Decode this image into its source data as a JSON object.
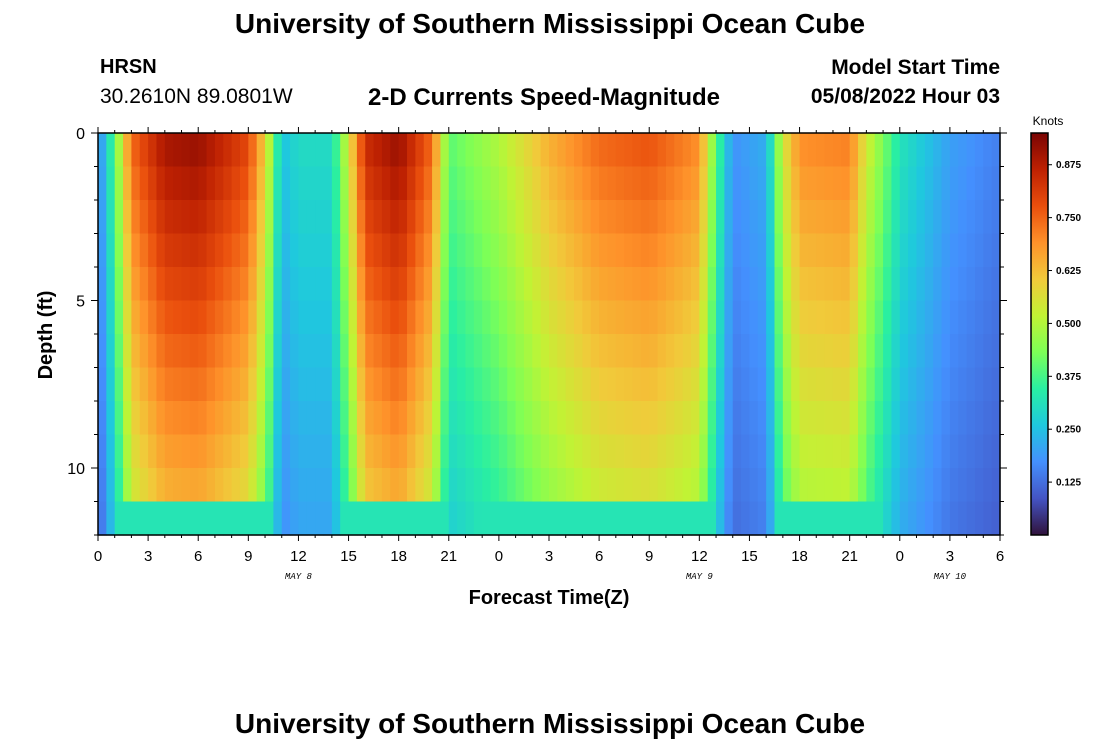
{
  "header": {
    "title": "University of Southern Mississippi Ocean Cube",
    "station": "HRSN",
    "coordinates": "30.2610N  89.0801W",
    "subtitle": "2-D Currents Speed-Magnitude",
    "model_start_label": "Model Start Time",
    "model_start_value": "05/08/2022 Hour 03"
  },
  "footer": {
    "title": "University of Southern Mississippi Ocean Cube"
  },
  "chart_data": {
    "type": "heatmap",
    "title": "2-D Currents Speed-Magnitude",
    "xlabel": "Forecast Time(Z)",
    "ylabel": "Depth (ft)",
    "x_range_hours": [
      0,
      54
    ],
    "y_range_ft": [
      0,
      12
    ],
    "x_tick_labels": [
      "0",
      "3",
      "6",
      "9",
      "12",
      "15",
      "18",
      "21",
      "0",
      "3",
      "6",
      "9",
      "12",
      "15",
      "18",
      "21",
      "0",
      "3",
      "6"
    ],
    "y_tick_labels": [
      "0",
      "5",
      "10"
    ],
    "date_labels": [
      {
        "text": "MAY 8",
        "hour": 12
      },
      {
        "text": "MAY 9",
        "hour": 36
      },
      {
        "text": "MAY 10",
        "hour": 51
      }
    ],
    "colorbar": {
      "label": "Knots",
      "range": [
        0,
        0.95
      ],
      "tick_labels": [
        "0.125",
        "0.250",
        "0.375",
        "0.500",
        "0.625",
        "0.750",
        "0.875"
      ],
      "colors": [
        "#30123b",
        "#4454c4",
        "#4490fe",
        "#1fc8de",
        "#29efa2",
        "#7dff56",
        "#c1f334",
        "#f1ca3a",
        "#fe922a",
        "#ea4f0d",
        "#be2102",
        "#7a0403"
      ]
    },
    "surface_speed_knots_by_hour": [
      {
        "hour": 0,
        "speed": 0.15
      },
      {
        "hour": 1,
        "speed": 0.4
      },
      {
        "hour": 2,
        "speed": 0.75
      },
      {
        "hour": 4,
        "speed": 0.9
      },
      {
        "hour": 6,
        "speed": 0.92
      },
      {
        "hour": 9,
        "speed": 0.8
      },
      {
        "hour": 10,
        "speed": 0.6
      },
      {
        "hour": 11,
        "speed": 0.25
      },
      {
        "hour": 12,
        "speed": 0.3
      },
      {
        "hour": 14,
        "speed": 0.3
      },
      {
        "hour": 15,
        "speed": 0.55
      },
      {
        "hour": 16,
        "speed": 0.85
      },
      {
        "hour": 18,
        "speed": 0.92
      },
      {
        "hour": 20,
        "speed": 0.75
      },
      {
        "hour": 21,
        "speed": 0.4
      },
      {
        "hour": 24,
        "speed": 0.5
      },
      {
        "hour": 27,
        "speed": 0.65
      },
      {
        "hour": 30,
        "speed": 0.75
      },
      {
        "hour": 33,
        "speed": 0.78
      },
      {
        "hour": 36,
        "speed": 0.7
      },
      {
        "hour": 37,
        "speed": 0.4
      },
      {
        "hour": 38,
        "speed": 0.18
      },
      {
        "hour": 40,
        "speed": 0.22
      },
      {
        "hour": 41,
        "speed": 0.55
      },
      {
        "hour": 42,
        "speed": 0.7
      },
      {
        "hour": 45,
        "speed": 0.72
      },
      {
        "hour": 46,
        "speed": 0.55
      },
      {
        "hour": 48,
        "speed": 0.32
      },
      {
        "hour": 51,
        "speed": 0.2
      },
      {
        "hour": 54,
        "speed": 0.15
      }
    ]
  }
}
